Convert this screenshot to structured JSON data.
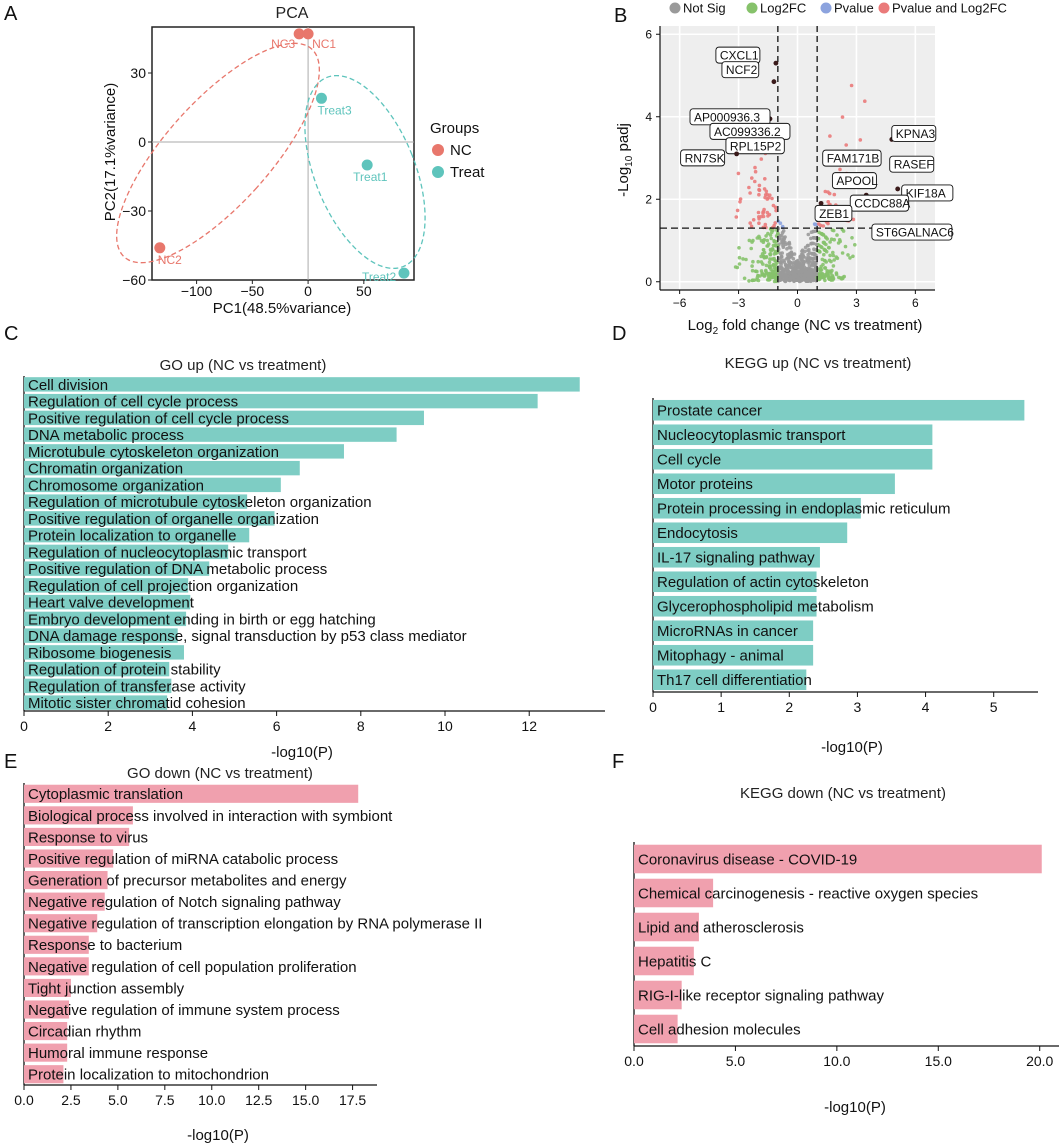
{
  "colors": {
    "nc": "#e8776c",
    "treat": "#5ec4bc",
    "up_bar": "#7ecdc4",
    "down_bar": "#f0a0ae",
    "not_sig": "#9a9a9a",
    "log2fc": "#86c26b",
    "pvalue": "#8ca3de",
    "pvalue_log2fc": "#ea7a7a",
    "zeb1": "#e03a2f"
  },
  "panels": {
    "a": "A",
    "b": "B",
    "c": "C",
    "d": "D",
    "e": "E",
    "f": "F"
  },
  "chart_data": [
    {
      "id": "pca",
      "type": "scatter",
      "title": "PCA",
      "xlabel": "PC1(48.5%variance)",
      "ylabel": "PC2(17.1%variance)",
      "xlim": [
        -140,
        95
      ],
      "ylim": [
        -60,
        50
      ],
      "xticks": [
        -100,
        -50,
        0,
        50
      ],
      "yticks": [
        -60,
        -30,
        0,
        30
      ],
      "legend_title": "Groups",
      "groups": [
        "NC",
        "Treat"
      ],
      "points": [
        {
          "label": "NC3",
          "group": "NC",
          "x": -8,
          "y": 47
        },
        {
          "label": "NC1",
          "group": "NC",
          "x": 0,
          "y": 47
        },
        {
          "label": "NC2",
          "group": "NC",
          "x": -133,
          "y": -46
        },
        {
          "label": "Treat3",
          "group": "Treat",
          "x": 12,
          "y": 19
        },
        {
          "label": "Treat1",
          "group": "Treat",
          "x": 53,
          "y": -10
        },
        {
          "label": "Treat2",
          "group": "Treat",
          "x": 86,
          "y": -57
        }
      ]
    },
    {
      "id": "volcano",
      "type": "scatter",
      "xlabel": "Log2 fold change (NC vs treatment)",
      "ylabel": "-Log10 padj",
      "xlim": [
        -7,
        7
      ],
      "ylim": [
        -0.2,
        6.2
      ],
      "xticks": [
        -6,
        -3,
        0,
        3,
        6
      ],
      "yticks": [
        0,
        2,
        4,
        6
      ],
      "fc_threshold": 1,
      "padj_threshold_log10": 1.3,
      "legend": [
        "Not Sig",
        "Log2FC",
        "Pvalue",
        "Pvalue and Log2FC"
      ],
      "labeled_genes": [
        {
          "name": "CXCL1",
          "x": -1.1,
          "y": 5.3
        },
        {
          "name": "NCF2",
          "x": -1.2,
          "y": 4.85
        },
        {
          "name": "AP000936.3",
          "x": -1.4,
          "y": 3.95
        },
        {
          "name": "AC099336.2",
          "x": -1.3,
          "y": 3.5
        },
        {
          "name": "RPL15P2",
          "x": -1.2,
          "y": 3.2
        },
        {
          "name": "RN7SK",
          "x": -3.1,
          "y": 3.1
        },
        {
          "name": "KPNA3",
          "x": 4.8,
          "y": 3.45
        },
        {
          "name": "FAM171B",
          "x": 2.2,
          "y": 2.9
        },
        {
          "name": "RASEF",
          "x": 5.0,
          "y": 2.85
        },
        {
          "name": "APOOL",
          "x": 3.0,
          "y": 2.5
        },
        {
          "name": "KIF18A",
          "x": 5.1,
          "y": 2.25
        },
        {
          "name": "CCDC88A",
          "x": 3.5,
          "y": 2.1
        },
        {
          "name": "ZEB1",
          "x": 1.2,
          "y": 1.9
        },
        {
          "name": "ST6GALNAC6",
          "x": 4.5,
          "y": 1.35
        }
      ]
    },
    {
      "id": "go_up",
      "type": "bar",
      "title": "GO up (NC vs treatment)",
      "xlabel": "-log10(P)",
      "xlim": [
        0,
        13.8
      ],
      "xticks": [
        "0",
        "2",
        "4",
        "6",
        "8",
        "10",
        "12"
      ],
      "categories": [
        "Cell division",
        "Regulation of cell cycle process",
        "Positive regulation of cell cycle process",
        "DNA metabolic process",
        "Microtubule cytoskeleton organization",
        "Chromatin organization",
        "Chromosome organization",
        "Regulation of microtubule cytoskeleton organization",
        "Positive regulation of organelle organization",
        "Protein localization to organelle",
        "Regulation of nucleocytoplasmic transport",
        "Positive regulation of DNA metabolic process",
        "Regulation of cell projection organization",
        "Heart valve development",
        "Embryo development ending in birth or egg hatching",
        "DNA damage response, signal transduction by p53 class mediator",
        "Ribosome biogenesis",
        "Regulation of protein stability",
        "Regulation of transferase activity",
        "Mitotic sister chromatid cohesion"
      ],
      "values": [
        13.2,
        12.2,
        9.5,
        8.85,
        7.6,
        6.55,
        6.1,
        5.3,
        5.95,
        5.35,
        4.85,
        4.4,
        3.9,
        3.95,
        3.85,
        3.65,
        3.8,
        3.45,
        3.5,
        3.4
      ]
    },
    {
      "id": "kegg_up",
      "type": "bar",
      "title": "KEGG up (NC vs treatment)",
      "xlabel": "-log10(P)",
      "xlim": [
        0,
        5.65
      ],
      "xticks": [
        "0",
        "1",
        "2",
        "3",
        "4",
        "5"
      ],
      "categories": [
        "Prostate cancer",
        "Nucleocytoplasmic transport",
        "Cell cycle",
        "Motor proteins",
        "Protein processing in endoplasmic reticulum",
        "Endocytosis",
        "IL-17 signaling pathway",
        "Regulation of actin cytoskeleton",
        "Glycerophospholipid metabolism",
        "MicroRNAs in cancer",
        "Mitophagy - animal",
        "Th17 cell differentiation"
      ],
      "values": [
        5.45,
        4.1,
        4.1,
        3.55,
        3.05,
        2.85,
        2.45,
        2.4,
        2.4,
        2.35,
        2.35,
        2.25
      ]
    },
    {
      "id": "go_down",
      "type": "bar",
      "title": "GO down (NC vs treatment)",
      "xlabel": "-log10(P)",
      "xlim": [
        0,
        18.8
      ],
      "xticks": [
        "0.0",
        "2.5",
        "5.0",
        "7.5",
        "10.0",
        "12.5",
        "15.0",
        "17.5"
      ],
      "categories": [
        "Cytoplasmic translation",
        "Biological process involved in interaction with symbiont",
        "Response to virus",
        "Positive regulation of miRNA catabolic process",
        "Generation of precursor metabolites and energy",
        "Negative regulation of Notch signaling pathway",
        "Negative regulation of transcription elongation by RNA polymerase II",
        "Response to bacterium",
        "Negative regulation of cell population proliferation",
        "Tight junction assembly",
        "Negative regulation of immune system process",
        "Circadian rhythm",
        "Humoral immune response",
        "Protein localization to mitochondrion"
      ],
      "values": [
        17.8,
        5.8,
        5.6,
        4.75,
        4.45,
        4.3,
        3.9,
        3.45,
        3.45,
        2.5,
        2.4,
        2.3,
        2.3,
        2.1
      ]
    },
    {
      "id": "kegg_down",
      "type": "bar",
      "title": "KEGG down (NC vs treatment)",
      "xlabel": "-log10(P)",
      "xlim": [
        0,
        21
      ],
      "xticks": [
        "0.0",
        "5.0",
        "10.0",
        "15.0",
        "20.0"
      ],
      "categories": [
        "Coronavirus disease - COVID-19",
        "Chemical carcinogenesis - reactive oxygen species",
        "Lipid and atherosclerosis",
        "Hepatitis C",
        "RIG-I-like receptor signaling pathway",
        "Cell adhesion molecules"
      ],
      "values": [
        20.1,
        3.9,
        3.2,
        2.95,
        2.35,
        2.15
      ]
    }
  ]
}
